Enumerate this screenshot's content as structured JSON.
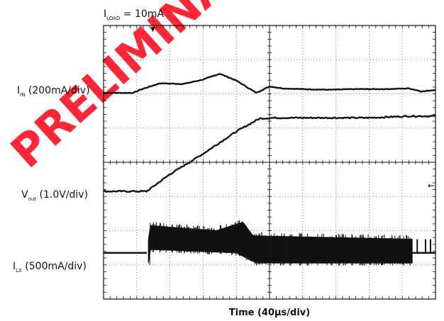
{
  "chart_data": {
    "type": "line",
    "title": "",
    "annotation": {
      "text": "I",
      "sub": "LOAD",
      "rest": " = 10mA"
    },
    "xlabel": "Time (40µs/div)",
    "grid": true,
    "grid_divisions": {
      "x": 10,
      "y": 8
    },
    "watermark_text": "PRELIMINARY DESIGN",
    "series": [
      {
        "name": {
          "main": "I",
          "sub": "IN",
          "rest": " (200mA/div)"
        },
        "x_div": [
          0,
          0.9,
          1.1,
          1.7,
          2.4,
          3.0,
          3.5,
          4.0,
          4.6,
          5.0,
          5.4,
          6.0,
          6.8,
          7.6,
          8.5,
          9.2,
          9.6,
          10.0
        ],
        "y_div": [
          6.03,
          6.03,
          6.12,
          6.31,
          6.29,
          6.42,
          6.59,
          6.39,
          6.03,
          6.22,
          6.16,
          6.14,
          6.12,
          6.14,
          6.14,
          6.16,
          6.07,
          6.12
        ],
        "noise": 0
      },
      {
        "name": {
          "main": "V",
          "sub": "out",
          "rest": " (1.0V/div)"
        },
        "x_div": [
          0,
          1.3,
          2.0,
          3.0,
          4.0,
          4.7,
          5.2,
          6.0,
          8.0,
          9.2,
          10.0
        ],
        "y_div": [
          3.15,
          3.15,
          3.65,
          4.25,
          4.9,
          5.28,
          5.3,
          5.3,
          5.3,
          5.35,
          5.35
        ],
        "noise": 0.02
      }
    ],
    "switching_trace": {
      "name": {
        "main": "I",
        "sub": "LX",
        "rest": " (500mA/div)"
      },
      "baseline_div": 1.35,
      "baseline_x_div": [
        0,
        1.3
      ],
      "burst_x_div": [
        1.35,
        9.3
      ],
      "burst_top_div": [
        [
          1.4,
          2.15
        ],
        [
          3.4,
          2.0
        ],
        [
          4.2,
          2.25
        ],
        [
          4.5,
          1.85
        ],
        [
          9.3,
          1.75
        ]
      ],
      "burst_bottom_div": [
        [
          1.4,
          1.45
        ],
        [
          4.0,
          1.35
        ],
        [
          4.6,
          1.05
        ],
        [
          9.3,
          1.05
        ]
      ],
      "tail_x_div": [
        9.3,
        10.0
      ],
      "tail_spikes_x_div": [
        9.45,
        9.7,
        9.85
      ]
    }
  }
}
